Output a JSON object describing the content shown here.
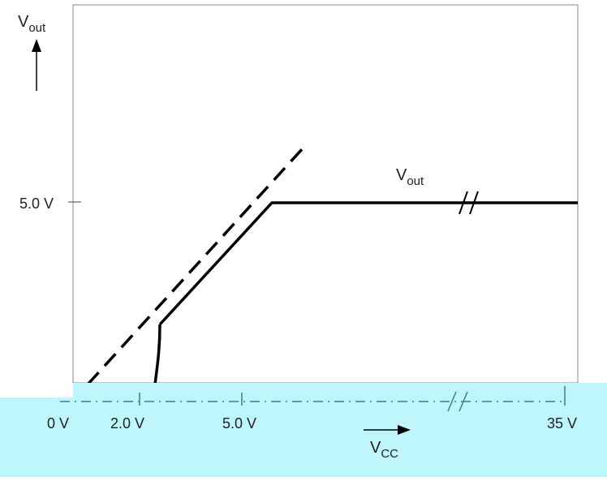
{
  "y_axis": {
    "label_main": "V",
    "label_sub": "out"
  },
  "x_axis": {
    "label_main": "V",
    "label_sub": "CC",
    "ticks": [
      "0 V",
      "2.0 V",
      "5.0 V",
      "35 V"
    ]
  },
  "y_ticks": [
    "5.0 V"
  ],
  "curve_label": {
    "main": "V",
    "sub": "out"
  },
  "colors": {
    "line": "#000000",
    "text": "#222222",
    "overlay": "#bff6fb",
    "axis_dash": "#3b7f90"
  }
}
